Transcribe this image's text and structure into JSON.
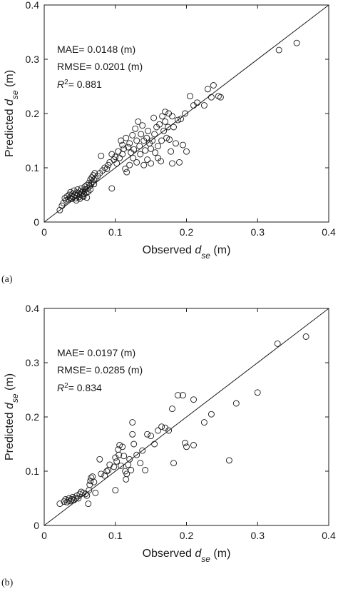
{
  "chart_data": [
    {
      "type": "scatter",
      "panel_label": "(a)",
      "xlabel": {
        "prefix": "Observed ",
        "var": "d",
        "sub": "se",
        "suffix": " (m)"
      },
      "ylabel": {
        "prefix": "Predicted ",
        "var": "d",
        "sub": "se",
        "suffix": " (m)"
      },
      "xlim": [
        0,
        0.4
      ],
      "ylim": [
        0,
        0.4
      ],
      "xticks": [
        "0",
        "0.1",
        "0.2",
        "0.3",
        "0.4"
      ],
      "yticks": [
        "0",
        "0.1",
        "0.2",
        "0.3",
        "0.4"
      ],
      "reference_line": {
        "from": [
          0,
          0
        ],
        "to": [
          0.4,
          0.4
        ]
      },
      "stats": {
        "mae_label": "MAE= ",
        "mae": "0.0148",
        "mae_unit": "  (m)",
        "rmse_label": "RMSE= ",
        "rmse": "0.0201",
        "rmse_unit": "  (m)",
        "r2_label": "R",
        "r2_exp": "2",
        "r2": "= 0.881"
      },
      "points": [
        [
          0.022,
          0.022
        ],
        [
          0.025,
          0.03
        ],
        [
          0.027,
          0.035
        ],
        [
          0.029,
          0.044
        ],
        [
          0.031,
          0.04
        ],
        [
          0.032,
          0.047
        ],
        [
          0.034,
          0.042
        ],
        [
          0.035,
          0.05
        ],
        [
          0.036,
          0.045
        ],
        [
          0.037,
          0.055
        ],
        [
          0.038,
          0.048
        ],
        [
          0.039,
          0.043
        ],
        [
          0.04,
          0.052
        ],
        [
          0.041,
          0.046
        ],
        [
          0.042,
          0.058
        ],
        [
          0.043,
          0.05
        ],
        [
          0.044,
          0.044
        ],
        [
          0.045,
          0.054
        ],
        [
          0.046,
          0.048
        ],
        [
          0.047,
          0.06
        ],
        [
          0.048,
          0.052
        ],
        [
          0.049,
          0.046
        ],
        [
          0.05,
          0.056
        ],
        [
          0.051,
          0.05
        ],
        [
          0.052,
          0.062
        ],
        [
          0.053,
          0.055
        ],
        [
          0.054,
          0.048
        ],
        [
          0.055,
          0.058
        ],
        [
          0.056,
          0.052
        ],
        [
          0.057,
          0.065
        ],
        [
          0.058,
          0.06
        ],
        [
          0.059,
          0.054
        ],
        [
          0.06,
          0.068
        ],
        [
          0.061,
          0.062
        ],
        [
          0.062,
          0.056
        ],
        [
          0.063,
          0.072
        ],
        [
          0.064,
          0.066
        ],
        [
          0.065,
          0.078
        ],
        [
          0.066,
          0.07
        ],
        [
          0.067,
          0.082
        ],
        [
          0.068,
          0.074
        ],
        [
          0.069,
          0.086
        ],
        [
          0.07,
          0.078
        ],
        [
          0.071,
          0.09
        ],
        [
          0.072,
          0.08
        ],
        [
          0.06,
          0.045
        ],
        [
          0.045,
          0.04
        ],
        [
          0.05,
          0.043
        ],
        [
          0.055,
          0.047
        ],
        [
          0.065,
          0.06
        ],
        [
          0.07,
          0.07
        ],
        [
          0.075,
          0.085
        ],
        [
          0.078,
          0.09
        ],
        [
          0.08,
          0.122
        ],
        [
          0.082,
          0.095
        ],
        [
          0.085,
          0.1
        ],
        [
          0.088,
          0.098
        ],
        [
          0.09,
          0.105
        ],
        [
          0.092,
          0.11
        ],
        [
          0.095,
          0.062
        ],
        [
          0.095,
          0.125
        ],
        [
          0.098,
          0.115
        ],
        [
          0.1,
          0.12
        ],
        [
          0.102,
          0.108
        ],
        [
          0.104,
          0.13
        ],
        [
          0.106,
          0.118
        ],
        [
          0.108,
          0.15
        ],
        [
          0.11,
          0.125
        ],
        [
          0.11,
          0.142
        ],
        [
          0.112,
          0.135
        ],
        [
          0.114,
          0.098
        ],
        [
          0.115,
          0.155
        ],
        [
          0.116,
          0.092
        ],
        [
          0.118,
          0.138
        ],
        [
          0.12,
          0.145
        ],
        [
          0.12,
          0.105
        ],
        [
          0.122,
          0.128
        ],
        [
          0.124,
          0.16
        ],
        [
          0.125,
          0.118
        ],
        [
          0.126,
          0.134
        ],
        [
          0.128,
          0.172
        ],
        [
          0.13,
          0.15
        ],
        [
          0.13,
          0.11
        ],
        [
          0.132,
          0.185
        ],
        [
          0.134,
          0.14
        ],
        [
          0.135,
          0.125
        ],
        [
          0.136,
          0.162
        ],
        [
          0.138,
          0.178
        ],
        [
          0.14,
          0.15
        ],
        [
          0.14,
          0.105
        ],
        [
          0.142,
          0.132
        ],
        [
          0.144,
          0.155
        ],
        [
          0.145,
          0.115
        ],
        [
          0.146,
          0.168
        ],
        [
          0.148,
          0.145
        ],
        [
          0.15,
          0.135
        ],
        [
          0.15,
          0.108
        ],
        [
          0.152,
          0.15
        ],
        [
          0.154,
          0.192
        ],
        [
          0.155,
          0.162
        ],
        [
          0.156,
          0.128
        ],
        [
          0.158,
          0.175
        ],
        [
          0.16,
          0.14
        ],
        [
          0.16,
          0.118
        ],
        [
          0.162,
          0.18
        ],
        [
          0.164,
          0.112
        ],
        [
          0.165,
          0.15
        ],
        [
          0.166,
          0.195
        ],
        [
          0.168,
          0.168
        ],
        [
          0.17,
          0.185
        ],
        [
          0.17,
          0.203
        ],
        [
          0.172,
          0.155
        ],
        [
          0.174,
          0.175
        ],
        [
          0.175,
          0.2
        ],
        [
          0.176,
          0.152
        ],
        [
          0.178,
          0.13
        ],
        [
          0.18,
          0.195
        ],
        [
          0.18,
          0.108
        ],
        [
          0.182,
          0.175
        ],
        [
          0.185,
          0.145
        ],
        [
          0.188,
          0.188
        ],
        [
          0.19,
          0.11
        ],
        [
          0.192,
          0.19
        ],
        [
          0.195,
          0.142
        ],
        [
          0.198,
          0.2
        ],
        [
          0.2,
          0.13
        ],
        [
          0.205,
          0.232
        ],
        [
          0.21,
          0.215
        ],
        [
          0.215,
          0.22
        ],
        [
          0.225,
          0.215
        ],
        [
          0.23,
          0.245
        ],
        [
          0.235,
          0.23
        ],
        [
          0.238,
          0.252
        ],
        [
          0.245,
          0.232
        ],
        [
          0.248,
          0.23
        ],
        [
          0.33,
          0.317
        ],
        [
          0.355,
          0.33
        ]
      ]
    },
    {
      "type": "scatter",
      "panel_label": "(b)",
      "xlabel": {
        "prefix": "Observed ",
        "var": "d",
        "sub": "se",
        "suffix": " (m)"
      },
      "ylabel": {
        "prefix": "Predicted ",
        "var": "d",
        "sub": "se",
        "suffix": " (m)"
      },
      "xlim": [
        0,
        0.4
      ],
      "ylim": [
        0,
        0.4
      ],
      "xticks": [
        "0",
        "0.1",
        "0.2",
        "0.3",
        "0.4"
      ],
      "yticks": [
        "0",
        "0.1",
        "0.2",
        "0.3",
        "0.4"
      ],
      "reference_line": {
        "from": [
          0,
          0
        ],
        "to": [
          0.4,
          0.4
        ]
      },
      "stats": {
        "mae_label": "MAE= ",
        "mae": "0.0197",
        "mae_unit": "  (m)",
        "rmse_label": "RMSE= ",
        "rmse": "0.0285",
        "rmse_unit": "  (m)",
        "r2_label": "R",
        "r2_exp": "2",
        "r2": "= 0.834"
      },
      "points": [
        [
          0.022,
          0.04
        ],
        [
          0.028,
          0.044
        ],
        [
          0.03,
          0.048
        ],
        [
          0.032,
          0.043
        ],
        [
          0.034,
          0.046
        ],
        [
          0.035,
          0.05
        ],
        [
          0.037,
          0.045
        ],
        [
          0.039,
          0.048
        ],
        [
          0.04,
          0.052
        ],
        [
          0.042,
          0.047
        ],
        [
          0.044,
          0.05
        ],
        [
          0.046,
          0.055
        ],
        [
          0.048,
          0.05
        ],
        [
          0.05,
          0.058
        ],
        [
          0.052,
          0.062
        ],
        [
          0.055,
          0.06
        ],
        [
          0.058,
          0.058
        ],
        [
          0.06,
          0.055
        ],
        [
          0.062,
          0.04
        ],
        [
          0.063,
          0.065
        ],
        [
          0.064,
          0.075
        ],
        [
          0.065,
          0.082
        ],
        [
          0.066,
          0.088
        ],
        [
          0.068,
          0.09
        ],
        [
          0.07,
          0.08
        ],
        [
          0.072,
          0.06
        ],
        [
          0.078,
          0.122
        ],
        [
          0.08,
          0.095
        ],
        [
          0.085,
          0.092
        ],
        [
          0.088,
          0.1
        ],
        [
          0.09,
          0.102
        ],
        [
          0.092,
          0.112
        ],
        [
          0.098,
          0.108
        ],
        [
          0.1,
          0.065
        ],
        [
          0.1,
          0.125
        ],
        [
          0.102,
          0.118
        ],
        [
          0.104,
          0.14
        ],
        [
          0.105,
          0.13
        ],
        [
          0.106,
          0.148
        ],
        [
          0.108,
          0.11
        ],
        [
          0.11,
          0.145
        ],
        [
          0.112,
          0.128
        ],
        [
          0.114,
          0.1
        ],
        [
          0.115,
          0.085
        ],
        [
          0.116,
          0.095
        ],
        [
          0.118,
          0.112
        ],
        [
          0.12,
          0.122
        ],
        [
          0.122,
          0.102
        ],
        [
          0.124,
          0.19
        ],
        [
          0.124,
          0.168
        ],
        [
          0.126,
          0.15
        ],
        [
          0.13,
          0.13
        ],
        [
          0.135,
          0.115
        ],
        [
          0.138,
          0.138
        ],
        [
          0.142,
          0.102
        ],
        [
          0.145,
          0.168
        ],
        [
          0.15,
          0.165
        ],
        [
          0.155,
          0.15
        ],
        [
          0.16,
          0.175
        ],
        [
          0.165,
          0.182
        ],
        [
          0.17,
          0.18
        ],
        [
          0.175,
          0.175
        ],
        [
          0.18,
          0.215
        ],
        [
          0.182,
          0.115
        ],
        [
          0.188,
          0.24
        ],
        [
          0.195,
          0.24
        ],
        [
          0.198,
          0.152
        ],
        [
          0.2,
          0.145
        ],
        [
          0.21,
          0.232
        ],
        [
          0.21,
          0.148
        ],
        [
          0.225,
          0.19
        ],
        [
          0.235,
          0.205
        ],
        [
          0.26,
          0.12
        ],
        [
          0.27,
          0.225
        ],
        [
          0.3,
          0.245
        ],
        [
          0.328,
          0.335
        ],
        [
          0.368,
          0.348
        ]
      ]
    }
  ]
}
